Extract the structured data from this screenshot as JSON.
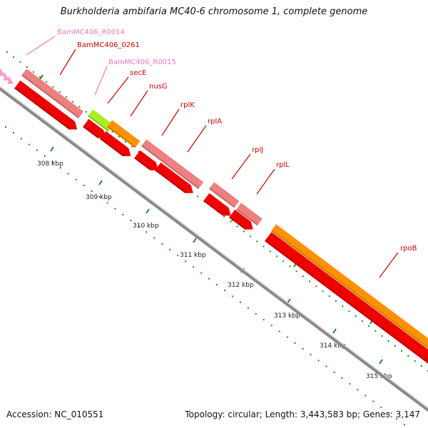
{
  "title": "Burkholderia ambifaria MC40-6 chromosome 1, complete genome",
  "footer": {
    "accession": "Accession: NC_010551",
    "summary": "Topology: circular; Length: 3,443,583 bp; Genes: 3,147"
  },
  "colors": {
    "gene_label": "#cc0000",
    "rna_label": "#ee77bb",
    "gene_arrow": "#ee0000",
    "gene_block": "#ee8080",
    "rna_block": "#ee8080",
    "secE_block": "#aaee22",
    "orange_block": "#ff9000",
    "backbone": "#888888",
    "tick": "#228822"
  },
  "scale": {
    "ticks": [
      "308 kbp",
      "309 kbp",
      "310 kbp",
      "311 kbp",
      "312 kbp",
      "313 kbp",
      "314 kbp",
      "315 kbp"
    ]
  },
  "features": [
    {
      "label": "BamMC406_R0014",
      "kind": "rna"
    },
    {
      "label": "BamMC406_0261",
      "kind": "gene"
    },
    {
      "label": "BamMC406_R0015",
      "kind": "rna"
    },
    {
      "label": "secE",
      "kind": "gene"
    },
    {
      "label": "nusG",
      "kind": "gene"
    },
    {
      "label": "rplK",
      "kind": "gene"
    },
    {
      "label": "rplA",
      "kind": "gene"
    },
    {
      "label": "rplJ",
      "kind": "gene"
    },
    {
      "label": "rplL",
      "kind": "gene"
    },
    {
      "label": "rpoB",
      "kind": "gene"
    }
  ]
}
